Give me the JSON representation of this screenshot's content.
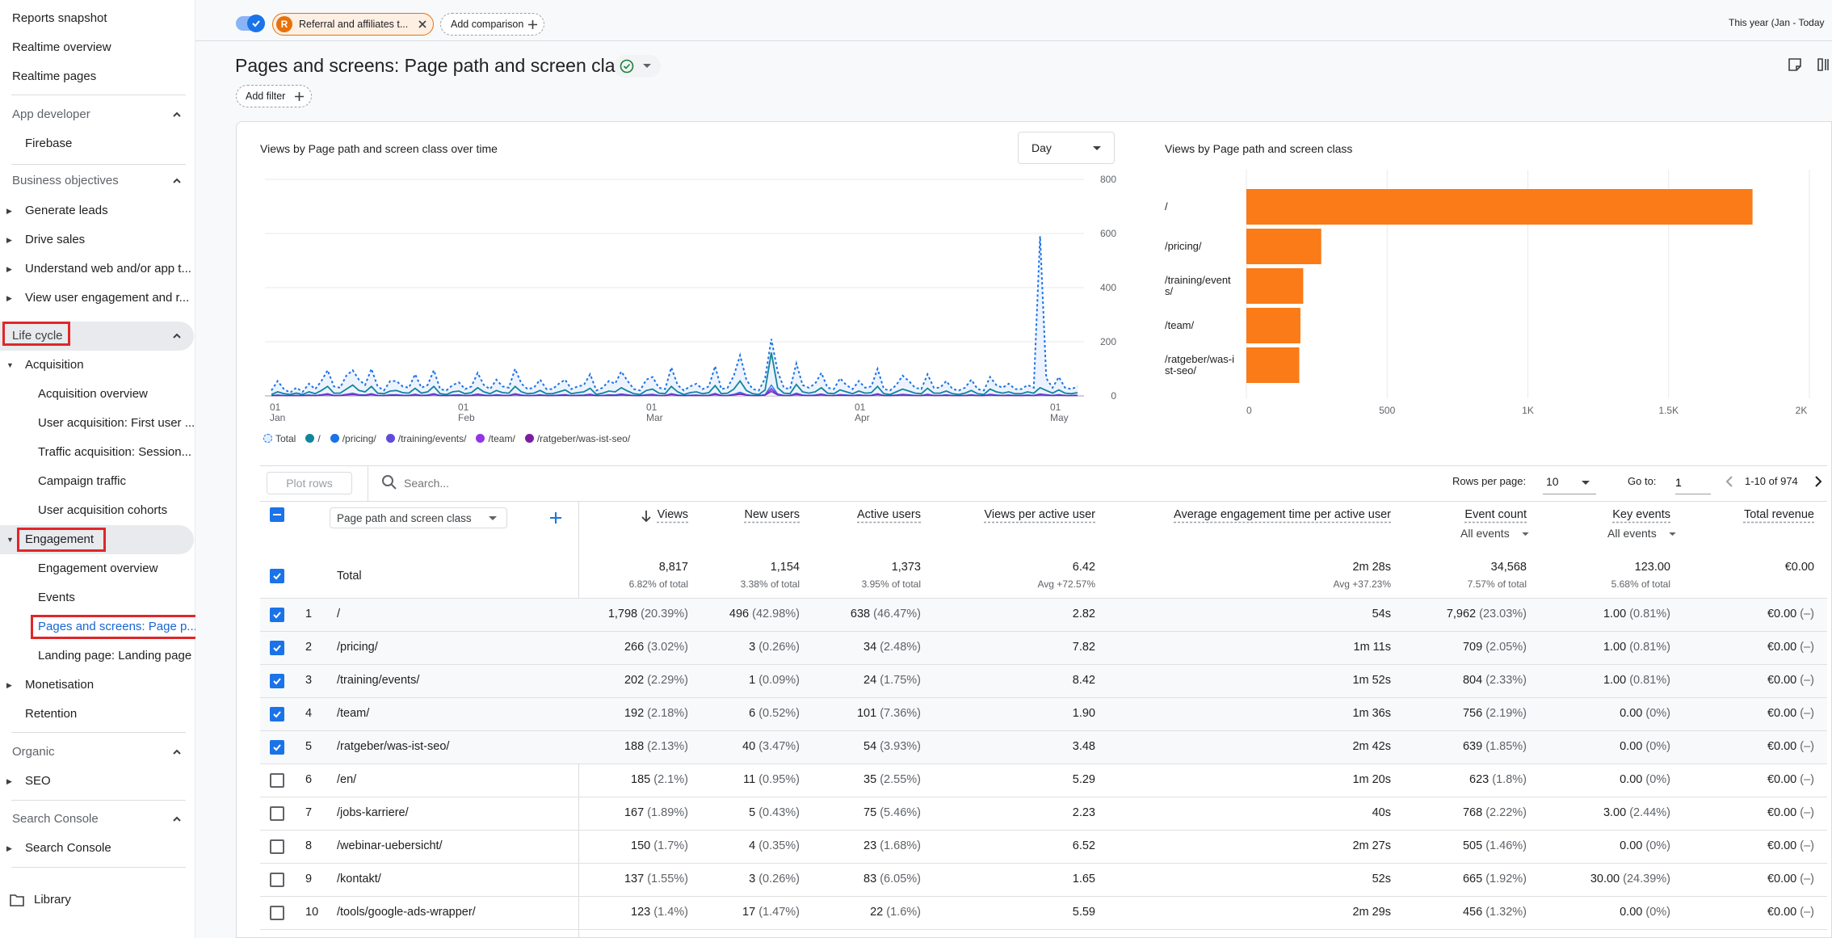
{
  "sidebar": {
    "top": [
      "Reports snapshot",
      "Realtime overview",
      "Realtime pages"
    ],
    "sections": {
      "app_developer": "App developer",
      "firebase": "Firebase",
      "business_objectives": "Business objectives",
      "generate_leads": "Generate leads",
      "drive_sales": "Drive sales",
      "understand": "Understand web and/or app t...",
      "view_engagement": "View user engagement and r...",
      "life_cycle": "Life cycle",
      "acquisition": "Acquisition",
      "acq_items": [
        "Acquisition overview",
        "User acquisition: First user ...",
        "Traffic acquisition: Session...",
        "Campaign traffic",
        "User acquisition cohorts"
      ],
      "engagement": "Engagement",
      "eng_items": [
        "Engagement overview",
        "Events",
        "Pages and screens: Page p...",
        "Landing page: Landing page"
      ],
      "monetisation": "Monetisation",
      "retention": "Retention",
      "organic": "Organic",
      "seo": "SEO",
      "search_console_section": "Search Console",
      "search_console_item": "Search Console",
      "library": "Library"
    }
  },
  "topbar": {
    "segment_badge": "R",
    "segment_label": "Referral and affiliates t...",
    "add_comparison": "Add comparison",
    "date_range": "This year (Jan - Today"
  },
  "page": {
    "title": "Pages and screens: Page path and screen class",
    "add_filter": "Add filter"
  },
  "line_chart": {
    "title": "Views by Page path and screen class over time",
    "granularity": "Day",
    "y_ticks": [
      "800",
      "600",
      "400",
      "200",
      "0"
    ],
    "x_ticks": [
      [
        "01",
        "Jan"
      ],
      [
        "01",
        "Feb"
      ],
      [
        "01",
        "Mar"
      ],
      [
        "01",
        "Apr"
      ],
      [
        "01",
        "May"
      ]
    ],
    "legend": [
      "Total",
      "/",
      "/pricing/",
      "/training/events/",
      "/team/",
      "/ratgeber/was-ist-seo/"
    ]
  },
  "bar_chart": {
    "title": "Views by Page path and screen class",
    "x_ticks": [
      "0",
      "500",
      "1K",
      "1.5K",
      "2K"
    ],
    "labels": [
      [
        "/"
      ],
      [
        "/pricing/"
      ],
      [
        "/training/event",
        "s/"
      ],
      [
        "/team/"
      ],
      [
        "/ratgeber/was-i",
        "st-seo/"
      ]
    ]
  },
  "chart_data": [
    {
      "type": "line",
      "title": "Views by Page path and screen class over time",
      "y_range": [
        0,
        800
      ],
      "x_range": [
        "Jan 1",
        "May 26"
      ],
      "series": [
        {
          "name": "Total",
          "values": [
            20,
            55,
            25,
            12,
            30,
            15,
            45,
            25,
            55,
            95,
            35,
            30,
            75,
            95,
            60,
            40,
            100,
            35,
            20,
            55,
            55,
            35,
            30,
            80,
            30,
            40,
            95,
            25,
            20,
            40,
            50,
            25,
            35,
            85,
            40,
            25,
            60,
            35,
            30,
            100,
            45,
            25,
            30,
            60,
            25,
            25,
            45,
            60,
            25,
            35,
            40,
            80,
            20,
            30,
            55,
            45,
            90,
            55,
            25,
            20,
            60,
            70,
            30,
            25,
            105,
            40,
            20,
            35,
            45,
            25,
            35,
            110,
            25,
            30,
            75,
            150,
            60,
            25,
            20,
            65,
            210,
            90,
            30,
            25,
            120,
            40,
            30,
            45,
            85,
            30,
            25,
            65,
            40,
            25,
            55,
            30,
            35,
            100,
            25,
            20,
            40,
            75,
            55,
            30,
            25,
            80,
            30,
            30,
            55,
            25,
            20,
            30,
            60,
            25,
            20,
            70,
            40,
            30,
            45,
            25,
            25,
            40,
            30,
            590,
            65,
            30,
            70,
            30,
            25,
            35
          ]
        },
        {
          "name": "/",
          "values": [
            5,
            15,
            8,
            5,
            10,
            5,
            15,
            8,
            20,
            35,
            10,
            10,
            25,
            40,
            20,
            15,
            35,
            10,
            8,
            18,
            20,
            12,
            10,
            28,
            10,
            15,
            35,
            8,
            5,
            15,
            18,
            8,
            12,
            30,
            15,
            8,
            20,
            12,
            10,
            35,
            15,
            8,
            10,
            20,
            8,
            8,
            15,
            22,
            8,
            12,
            15,
            28,
            5,
            10,
            18,
            15,
            30,
            18,
            8,
            5,
            20,
            25,
            10,
            8,
            35,
            15,
            5,
            12,
            15,
            8,
            12,
            38,
            8,
            10,
            25,
            55,
            20,
            8,
            5,
            22,
            160,
            30,
            10,
            8,
            42,
            15,
            10,
            15,
            30,
            10,
            8,
            22,
            15,
            8,
            18,
            10,
            12,
            35,
            8,
            5,
            15,
            25,
            18,
            10,
            8,
            28,
            10,
            10,
            18,
            8,
            5,
            10,
            20,
            8,
            5,
            25,
            15,
            10,
            15,
            8,
            8,
            15,
            10,
            30,
            20,
            10,
            22,
            10,
            8,
            12
          ]
        }
      ]
    },
    {
      "type": "bar",
      "title": "Views by Page path and screen class",
      "categories": [
        "/",
        "/pricing/",
        "/training/events/",
        "/team/",
        "/ratgeber/was-ist-seo/"
      ],
      "values": [
        1798,
        266,
        202,
        192,
        188
      ],
      "x_range": [
        0,
        2000
      ],
      "color": "#fa7b17"
    }
  ],
  "table": {
    "plot_rows": "Plot rows",
    "search_placeholder": "Search...",
    "rows_per_page_label": "Rows per page:",
    "rows_per_page": "10",
    "goto_label": "Go to:",
    "goto_value": "1",
    "range": "1-10 of 974",
    "dimension": "Page path and screen class",
    "columns": [
      "Views",
      "New users",
      "Active users",
      "Views per active user",
      "Average engagement time per active user",
      "Event count",
      "Key events",
      "Total revenue"
    ],
    "event_filter": "All events",
    "key_filter": "All events",
    "total_label": "Total",
    "totals": [
      [
        "8,817",
        "6.82% of total"
      ],
      [
        "1,154",
        "3.38% of total"
      ],
      [
        "1,373",
        "3.95% of total"
      ],
      [
        "6.42",
        "Avg +72.57%"
      ],
      [
        "2m 28s",
        "Avg +37.23%"
      ],
      [
        "34,568",
        "7.57% of total"
      ],
      [
        "123.00",
        "5.68% of total"
      ],
      [
        "€0.00",
        ""
      ]
    ],
    "rows": [
      {
        "n": "1",
        "path": "/",
        "checked": true,
        "views": [
          "1,798",
          "(20.39%)"
        ],
        "new": [
          "496",
          "(42.98%)"
        ],
        "active": [
          "638",
          "(46.47%)"
        ],
        "vpa": "2.82",
        "avg": "54s",
        "events": [
          "7,962",
          "(23.03%)"
        ],
        "key": [
          "1.00",
          "(0.81%)"
        ],
        "rev": [
          "€0.00",
          "(–)"
        ]
      },
      {
        "n": "2",
        "path": "/pricing/",
        "checked": true,
        "views": [
          "266",
          "(3.02%)"
        ],
        "new": [
          "3",
          "(0.26%)"
        ],
        "active": [
          "34",
          "(2.48%)"
        ],
        "vpa": "7.82",
        "avg": "1m 11s",
        "events": [
          "709",
          "(2.05%)"
        ],
        "key": [
          "1.00",
          "(0.81%)"
        ],
        "rev": [
          "€0.00",
          "(–)"
        ]
      },
      {
        "n": "3",
        "path": "/training/events/",
        "checked": true,
        "views": [
          "202",
          "(2.29%)"
        ],
        "new": [
          "1",
          "(0.09%)"
        ],
        "active": [
          "24",
          "(1.75%)"
        ],
        "vpa": "8.42",
        "avg": "1m 52s",
        "events": [
          "804",
          "(2.33%)"
        ],
        "key": [
          "1.00",
          "(0.81%)"
        ],
        "rev": [
          "€0.00",
          "(–)"
        ]
      },
      {
        "n": "4",
        "path": "/team/",
        "checked": true,
        "views": [
          "192",
          "(2.18%)"
        ],
        "new": [
          "6",
          "(0.52%)"
        ],
        "active": [
          "101",
          "(7.36%)"
        ],
        "vpa": "1.90",
        "avg": "1m 36s",
        "events": [
          "756",
          "(2.19%)"
        ],
        "key": [
          "0.00",
          "(0%)"
        ],
        "rev": [
          "€0.00",
          "(–)"
        ]
      },
      {
        "n": "5",
        "path": "/ratgeber/was-ist-seo/",
        "checked": true,
        "views": [
          "188",
          "(2.13%)"
        ],
        "new": [
          "40",
          "(3.47%)"
        ],
        "active": [
          "54",
          "(3.93%)"
        ],
        "vpa": "3.48",
        "avg": "2m 42s",
        "events": [
          "639",
          "(1.85%)"
        ],
        "key": [
          "0.00",
          "(0%)"
        ],
        "rev": [
          "€0.00",
          "(–)"
        ]
      },
      {
        "n": "6",
        "path": "/en/",
        "checked": false,
        "views": [
          "185",
          "(2.1%)"
        ],
        "new": [
          "11",
          "(0.95%)"
        ],
        "active": [
          "35",
          "(2.55%)"
        ],
        "vpa": "5.29",
        "avg": "1m 20s",
        "events": [
          "623",
          "(1.8%)"
        ],
        "key": [
          "0.00",
          "(0%)"
        ],
        "rev": [
          "€0.00",
          "(–)"
        ]
      },
      {
        "n": "7",
        "path": "/jobs-karriere/",
        "checked": false,
        "views": [
          "167",
          "(1.89%)"
        ],
        "new": [
          "5",
          "(0.43%)"
        ],
        "active": [
          "75",
          "(5.46%)"
        ],
        "vpa": "2.23",
        "avg": "40s",
        "events": [
          "768",
          "(2.22%)"
        ],
        "key": [
          "3.00",
          "(2.44%)"
        ],
        "rev": [
          "€0.00",
          "(–)"
        ]
      },
      {
        "n": "8",
        "path": "/webinar-uebersicht/",
        "checked": false,
        "views": [
          "150",
          "(1.7%)"
        ],
        "new": [
          "4",
          "(0.35%)"
        ],
        "active": [
          "23",
          "(1.68%)"
        ],
        "vpa": "6.52",
        "avg": "2m 27s",
        "events": [
          "505",
          "(1.46%)"
        ],
        "key": [
          "0.00",
          "(0%)"
        ],
        "rev": [
          "€0.00",
          "(–)"
        ]
      },
      {
        "n": "9",
        "path": "/kontakt/",
        "checked": false,
        "views": [
          "137",
          "(1.55%)"
        ],
        "new": [
          "3",
          "(0.26%)"
        ],
        "active": [
          "83",
          "(6.05%)"
        ],
        "vpa": "1.65",
        "avg": "52s",
        "events": [
          "665",
          "(1.92%)"
        ],
        "key": [
          "30.00",
          "(24.39%)"
        ],
        "rev": [
          "€0.00",
          "(–)"
        ]
      },
      {
        "n": "10",
        "path": "/tools/google-ads-wrapper/",
        "checked": false,
        "views": [
          "123",
          "(1.4%)"
        ],
        "new": [
          "17",
          "(1.47%)"
        ],
        "active": [
          "22",
          "(1.6%)"
        ],
        "vpa": "5.59",
        "avg": "2m 29s",
        "events": [
          "456",
          "(1.32%)"
        ],
        "key": [
          "0.00",
          "(0%)"
        ],
        "rev": [
          "€0.00",
          "(–)"
        ]
      }
    ]
  },
  "colors": {
    "accent": "#1a73e8",
    "bar": "#fa7b17",
    "highlight_box": "#e0262a",
    "segment_badge": "#e8710a"
  }
}
